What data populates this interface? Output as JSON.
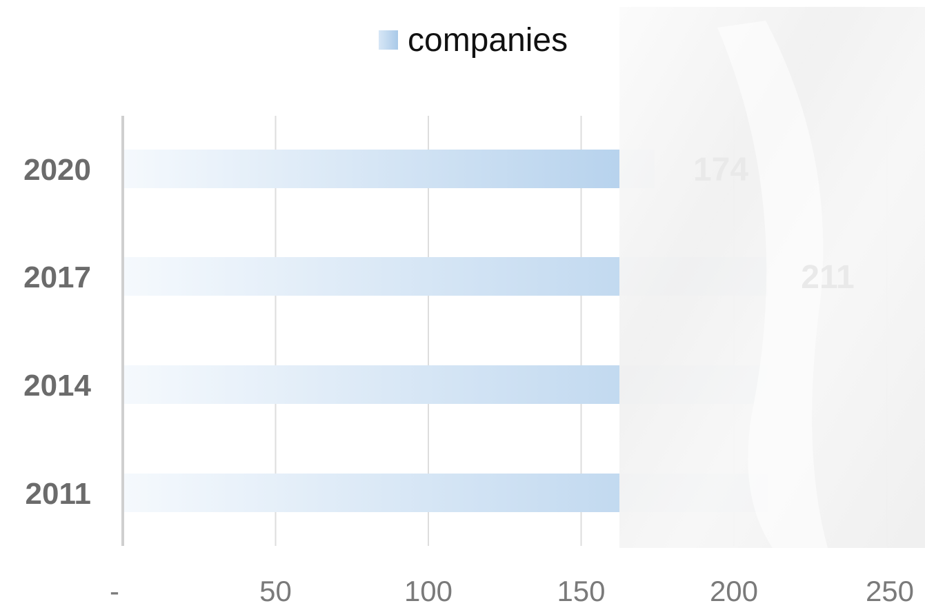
{
  "chart_data": {
    "type": "bar",
    "orientation": "horizontal",
    "categories": [
      "2020",
      "2017",
      "2014",
      "2011"
    ],
    "series": [
      {
        "name": "companies",
        "values": [
          174,
          211,
          211,
          211
        ]
      }
    ],
    "data_labels": [
      "174",
      "211",
      "",
      ""
    ],
    "x_ticks": [
      "-",
      "50",
      "100",
      "150",
      "200",
      "250"
    ],
    "xlim": [
      0,
      260
    ],
    "grid": true,
    "legend": "top-center",
    "colors": {
      "bar_light": "#f5f9fd",
      "bar_dark": "#b3d0ec",
      "grid": "#dddddd",
      "axis": "#cfcfcf"
    }
  }
}
